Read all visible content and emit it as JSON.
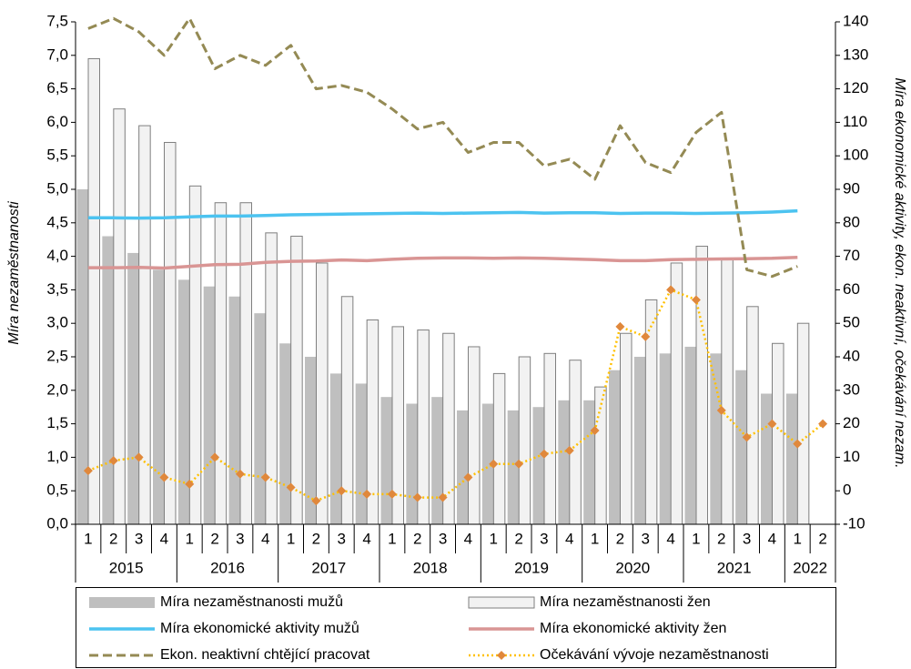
{
  "chart_data": {
    "type": "combo",
    "y_label": "Míra nezaměstnanosti",
    "y2_label": "Míra ekonomické aktivity, ekon. neaktivní, očekávání nezam.",
    "categories": [
      "1",
      "2",
      "3",
      "4",
      "1",
      "2",
      "3",
      "4",
      "1",
      "2",
      "3",
      "4",
      "1",
      "2",
      "3",
      "4",
      "1",
      "2",
      "3",
      "4",
      "1",
      "2",
      "3",
      "4",
      "1",
      "2",
      "3",
      "4",
      "1",
      "2"
    ],
    "years": [
      "2015",
      null,
      null,
      null,
      "2016",
      null,
      null,
      null,
      "2017",
      null,
      null,
      null,
      "2018",
      null,
      null,
      null,
      "2019",
      null,
      null,
      null,
      "2020",
      null,
      null,
      null,
      "2021",
      null,
      null,
      null,
      "2022",
      null
    ],
    "ylim": [
      0,
      7.5
    ],
    "yticks": [
      {
        "value": 0,
        "label": "0,0"
      },
      {
        "value": 0.5,
        "label": "0,5"
      },
      {
        "value": 1,
        "label": "1,0"
      },
      {
        "value": 1.5,
        "label": "1,5"
      },
      {
        "value": 2,
        "label": "2,0"
      },
      {
        "value": 2.5,
        "label": "2,5"
      },
      {
        "value": 3,
        "label": "3,0"
      },
      {
        "value": 3.5,
        "label": "3,5"
      },
      {
        "value": 4,
        "label": "4,0"
      },
      {
        "value": 4.5,
        "label": "4,5"
      },
      {
        "value": 5,
        "label": "5,0"
      },
      {
        "value": 5.5,
        "label": "5,5"
      },
      {
        "value": 6,
        "label": "6,0"
      },
      {
        "value": 6.5,
        "label": "6,5"
      },
      {
        "value": 7,
        "label": "7,0"
      },
      {
        "value": 7.5,
        "label": "7,5"
      }
    ],
    "y2lim": [
      -10,
      140
    ],
    "y2ticks": [
      -10,
      0,
      10,
      20,
      30,
      40,
      50,
      60,
      70,
      80,
      90,
      100,
      110,
      120,
      130,
      140
    ],
    "grid": false,
    "legend": "bottom",
    "series": [
      {
        "name": "Míra nezaměstnanosti mužů",
        "type": "bar",
        "color": "#bfbfbf",
        "values": [
          5.0,
          4.3,
          4.05,
          3.8,
          3.65,
          3.55,
          3.4,
          3.15,
          2.7,
          2.5,
          2.25,
          2.1,
          1.9,
          1.8,
          1.9,
          1.7,
          1.8,
          1.7,
          1.75,
          1.85,
          1.85,
          2.3,
          2.5,
          2.55,
          2.65,
          2.55,
          2.3,
          1.95,
          1.95,
          null
        ]
      },
      {
        "name": "Míra nezaměstnanosti žen",
        "type": "bar",
        "color": "#f2f2f2",
        "stroke": "#7f7f7f",
        "values": [
          6.95,
          6.2,
          5.95,
          5.7,
          5.05,
          4.8,
          4.8,
          4.35,
          4.3,
          3.9,
          3.4,
          3.05,
          2.95,
          2.9,
          2.85,
          2.65,
          2.25,
          2.5,
          2.55,
          2.45,
          2.05,
          2.85,
          3.35,
          3.9,
          4.15,
          3.95,
          3.25,
          2.7,
          3.0,
          null
        ]
      },
      {
        "name": "Míra ekonomické aktivity mužů",
        "type": "line",
        "axis": "y2",
        "color": "#4cc3f0",
        "dash": "solid",
        "values": [
          81.5,
          81.5,
          81.4,
          81.5,
          81.8,
          82.0,
          82.0,
          82.2,
          82.4,
          82.5,
          82.6,
          82.7,
          82.8,
          82.9,
          82.8,
          82.9,
          83.0,
          83.1,
          82.9,
          83.0,
          83.0,
          82.8,
          82.9,
          82.9,
          82.8,
          82.9,
          83.0,
          83.2,
          83.6,
          null
        ]
      },
      {
        "name": "Míra ekonomické aktivity žen",
        "type": "line",
        "axis": "y2",
        "color": "#d99594",
        "dash": "solid",
        "values": [
          66.6,
          66.6,
          66.7,
          66.5,
          67.0,
          67.5,
          67.6,
          68.2,
          68.5,
          68.6,
          68.9,
          68.7,
          69.1,
          69.4,
          69.5,
          69.5,
          69.4,
          69.5,
          69.4,
          69.2,
          69.0,
          68.7,
          68.7,
          69.0,
          69.1,
          69.2,
          69.3,
          69.4,
          69.7,
          null
        ]
      },
      {
        "name": "Ekon. neaktivní chtějící pracovat",
        "type": "line",
        "axis": "y2",
        "color": "#948a54",
        "dash": "dashed",
        "values": [
          138,
          141,
          137,
          130,
          141,
          126,
          130,
          127,
          133,
          120,
          121,
          119,
          114,
          108,
          110,
          101,
          104,
          104,
          97,
          99,
          93,
          109,
          98,
          95,
          107,
          113,
          66,
          64,
          67,
          null
        ]
      },
      {
        "name": "Očekávání vývoje nezaměstnanosti",
        "type": "line",
        "axis": "y2",
        "color": "#ffc000",
        "dash": "dotted",
        "marker": "diamond",
        "marker_color": "#e0883c",
        "values": [
          6,
          9,
          10,
          4,
          2,
          10,
          5,
          4,
          1,
          -3,
          0,
          -1,
          -1,
          -2,
          -2,
          4,
          8,
          8,
          11,
          12,
          18,
          49,
          46,
          60,
          57,
          24,
          16,
          20,
          14,
          20
        ]
      }
    ]
  }
}
